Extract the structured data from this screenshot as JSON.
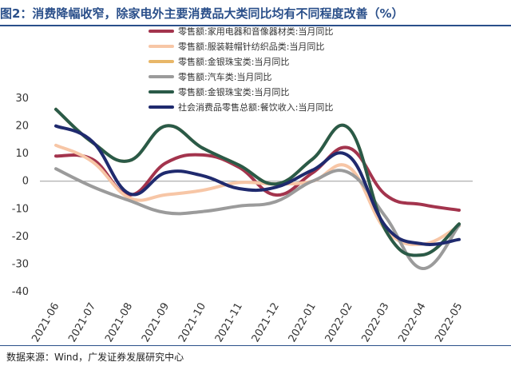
{
  "figure": {
    "title": "图2：消费降幅收窄，除家电外主要消费品大类同比均有不同程度改善（%）",
    "source": "数据来源：Wind，广发证券发展研究中心"
  },
  "chart_data": {
    "type": "line",
    "title": "图2：消费降幅收窄，除家电外主要消费品大类同比均有不同程度改善（%）",
    "xlabel": "",
    "ylabel": "",
    "ylim": [
      -40,
      30
    ],
    "yticks": [
      30,
      20,
      10,
      0,
      -10,
      -20,
      -30,
      -40
    ],
    "grid": false,
    "legend_position": "top-center",
    "categories": [
      "2021-06",
      "2021-07",
      "2021-08",
      "2021-09",
      "2021-10",
      "2021-11",
      "2021-12",
      "2022-01",
      "2022-02",
      "2022-03",
      "2022-04",
      "2022-05"
    ],
    "series": [
      {
        "name": "零售额:家用电器和音像器材类:当月同比",
        "color": "#a3344d",
        "values": [
          9.1,
          7.9,
          -5.0,
          6.6,
          9.5,
          5.0,
          -5.0,
          3.0,
          12.0,
          -5.0,
          -8.5,
          -10.5
        ]
      },
      {
        "name": "零售额:服装鞋帽针纺织品类:当月同比",
        "color": "#f7c6a6",
        "values": [
          13.0,
          7.0,
          -6.0,
          -4.9,
          -3.3,
          -0.5,
          -1.0,
          0.0,
          5.0,
          -17.6,
          -22.8,
          -16.2
        ]
      },
      {
        "name": "零售额:金银珠宝类:当月同比",
        "color": "#e8b768",
        "values": [
          26.0,
          14.0,
          7.4,
          20.0,
          12.0,
          5.8,
          -1.0,
          8.0,
          19.0,
          -17.9,
          -26.7,
          -15.5
        ]
      },
      {
        "name": "零售额:汽车类:当月同比",
        "color": "#9b9b9b",
        "values": [
          4.5,
          -2.0,
          -7.0,
          -11.4,
          -11.0,
          -9.0,
          -7.4,
          0.0,
          3.0,
          -13.0,
          -31.6,
          -16.0
        ]
      },
      {
        "name": "零售额:金银珠宝类:当月同比",
        "color": "#2a5a48",
        "values": [
          26.0,
          14.0,
          7.4,
          20.0,
          12.0,
          5.8,
          -1.0,
          8.0,
          19.0,
          -17.9,
          -26.7,
          -15.5
        ]
      },
      {
        "name": "社会消费品零售总额:餐饮收入:当月同比",
        "color": "#1f2a6e",
        "values": [
          20.0,
          14.3,
          -4.5,
          3.1,
          2.0,
          -2.7,
          -2.2,
          4.0,
          9.0,
          -16.4,
          -22.7,
          -21.1
        ]
      }
    ]
  }
}
